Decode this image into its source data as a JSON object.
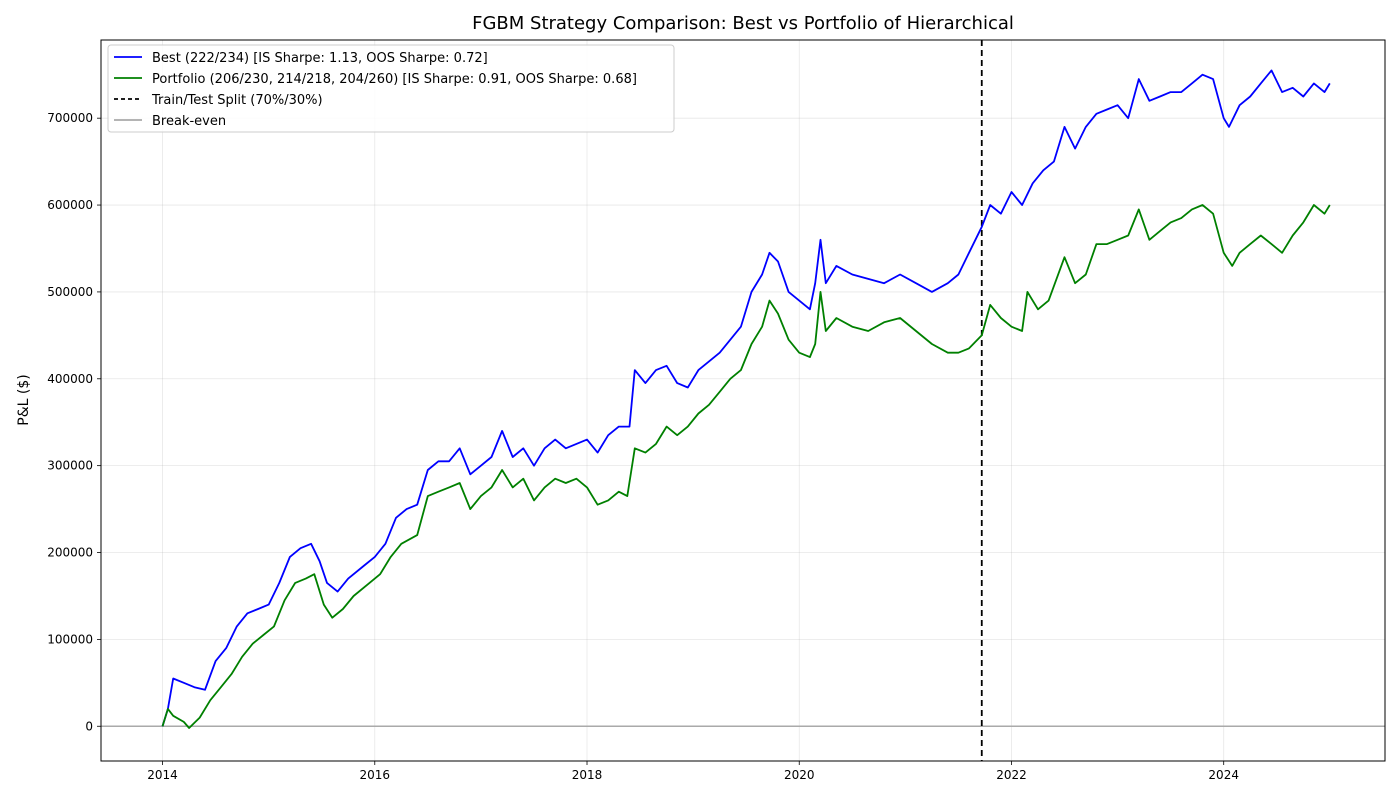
{
  "chart_data": {
    "type": "line",
    "title": "FGBM Strategy Comparison: Best vs Portfolio of Hierarchical",
    "xlabel": "",
    "ylabel": "P&L ($)",
    "x_ticks": [
      "2014",
      "2016",
      "2018",
      "2020",
      "2022",
      "2024"
    ],
    "y_ticks": [
      "0",
      "100000",
      "200000",
      "300000",
      "400000",
      "500000",
      "600000",
      "700000"
    ],
    "xlim": [
      2013.42,
      2025.52
    ],
    "ylim": [
      -40000,
      790000
    ],
    "grid": true,
    "legend_position": "upper-left",
    "series": [
      {
        "name": "Best (222/234) [IS Sharpe: 1.13, OOS Sharpe: 0.72]",
        "color": "#0000ff",
        "style": "solid",
        "points": [
          [
            2014.0,
            0
          ],
          [
            2014.05,
            20000
          ],
          [
            2014.1,
            55000
          ],
          [
            2014.2,
            50000
          ],
          [
            2014.3,
            45000
          ],
          [
            2014.4,
            42000
          ],
          [
            2014.5,
            75000
          ],
          [
            2014.6,
            90000
          ],
          [
            2014.7,
            115000
          ],
          [
            2014.8,
            130000
          ],
          [
            2014.9,
            135000
          ],
          [
            2015.0,
            140000
          ],
          [
            2015.1,
            165000
          ],
          [
            2015.2,
            195000
          ],
          [
            2015.3,
            205000
          ],
          [
            2015.4,
            210000
          ],
          [
            2015.48,
            190000
          ],
          [
            2015.55,
            165000
          ],
          [
            2015.65,
            155000
          ],
          [
            2015.75,
            170000
          ],
          [
            2015.9,
            185000
          ],
          [
            2016.0,
            195000
          ],
          [
            2016.1,
            210000
          ],
          [
            2016.2,
            240000
          ],
          [
            2016.3,
            250000
          ],
          [
            2016.4,
            255000
          ],
          [
            2016.5,
            295000
          ],
          [
            2016.6,
            305000
          ],
          [
            2016.7,
            305000
          ],
          [
            2016.8,
            320000
          ],
          [
            2016.9,
            290000
          ],
          [
            2017.0,
            300000
          ],
          [
            2017.1,
            310000
          ],
          [
            2017.2,
            340000
          ],
          [
            2017.3,
            310000
          ],
          [
            2017.4,
            320000
          ],
          [
            2017.5,
            300000
          ],
          [
            2017.6,
            320000
          ],
          [
            2017.7,
            330000
          ],
          [
            2017.8,
            320000
          ],
          [
            2017.9,
            325000
          ],
          [
            2018.0,
            330000
          ],
          [
            2018.1,
            315000
          ],
          [
            2018.2,
            335000
          ],
          [
            2018.3,
            345000
          ],
          [
            2018.4,
            345000
          ],
          [
            2018.45,
            410000
          ],
          [
            2018.55,
            395000
          ],
          [
            2018.65,
            410000
          ],
          [
            2018.75,
            415000
          ],
          [
            2018.85,
            395000
          ],
          [
            2018.95,
            390000
          ],
          [
            2019.05,
            410000
          ],
          [
            2019.15,
            420000
          ],
          [
            2019.25,
            430000
          ],
          [
            2019.35,
            445000
          ],
          [
            2019.45,
            460000
          ],
          [
            2019.55,
            500000
          ],
          [
            2019.65,
            520000
          ],
          [
            2019.72,
            545000
          ],
          [
            2019.8,
            535000
          ],
          [
            2019.9,
            500000
          ],
          [
            2020.0,
            490000
          ],
          [
            2020.1,
            480000
          ],
          [
            2020.15,
            510000
          ],
          [
            2020.2,
            560000
          ],
          [
            2020.25,
            510000
          ],
          [
            2020.35,
            530000
          ],
          [
            2020.5,
            520000
          ],
          [
            2020.65,
            515000
          ],
          [
            2020.8,
            510000
          ],
          [
            2020.95,
            520000
          ],
          [
            2021.1,
            510000
          ],
          [
            2021.25,
            500000
          ],
          [
            2021.4,
            510000
          ],
          [
            2021.5,
            520000
          ],
          [
            2021.6,
            545000
          ],
          [
            2021.72,
            575000
          ],
          [
            2021.8,
            600000
          ],
          [
            2021.9,
            590000
          ],
          [
            2022.0,
            615000
          ],
          [
            2022.1,
            600000
          ],
          [
            2022.2,
            625000
          ],
          [
            2022.3,
            640000
          ],
          [
            2022.4,
            650000
          ],
          [
            2022.5,
            690000
          ],
          [
            2022.6,
            665000
          ],
          [
            2022.7,
            690000
          ],
          [
            2022.8,
            705000
          ],
          [
            2022.9,
            710000
          ],
          [
            2023.0,
            715000
          ],
          [
            2023.1,
            700000
          ],
          [
            2023.2,
            745000
          ],
          [
            2023.3,
            720000
          ],
          [
            2023.4,
            725000
          ],
          [
            2023.5,
            730000
          ],
          [
            2023.6,
            730000
          ],
          [
            2023.7,
            740000
          ],
          [
            2023.8,
            750000
          ],
          [
            2023.9,
            745000
          ],
          [
            2024.0,
            700000
          ],
          [
            2024.05,
            690000
          ],
          [
            2024.15,
            715000
          ],
          [
            2024.25,
            725000
          ],
          [
            2024.35,
            740000
          ],
          [
            2024.45,
            755000
          ],
          [
            2024.55,
            730000
          ],
          [
            2024.65,
            735000
          ],
          [
            2024.75,
            725000
          ],
          [
            2024.85,
            740000
          ],
          [
            2024.95,
            730000
          ],
          [
            2025.0,
            740000
          ]
        ]
      },
      {
        "name": "Portfolio (206/230, 214/218, 204/260) [IS Sharpe: 0.91, OOS Sharpe: 0.68]",
        "color": "#008000",
        "style": "solid",
        "points": [
          [
            2014.0,
            0
          ],
          [
            2014.05,
            20000
          ],
          [
            2014.1,
            12000
          ],
          [
            2014.2,
            5000
          ],
          [
            2014.25,
            -2000
          ],
          [
            2014.35,
            10000
          ],
          [
            2014.45,
            30000
          ],
          [
            2014.55,
            45000
          ],
          [
            2014.65,
            60000
          ],
          [
            2014.75,
            80000
          ],
          [
            2014.85,
            95000
          ],
          [
            2014.95,
            105000
          ],
          [
            2015.05,
            115000
          ],
          [
            2015.15,
            145000
          ],
          [
            2015.25,
            165000
          ],
          [
            2015.35,
            170000
          ],
          [
            2015.43,
            175000
          ],
          [
            2015.52,
            140000
          ],
          [
            2015.6,
            125000
          ],
          [
            2015.7,
            135000
          ],
          [
            2015.8,
            150000
          ],
          [
            2015.95,
            165000
          ],
          [
            2016.05,
            175000
          ],
          [
            2016.15,
            195000
          ],
          [
            2016.25,
            210000
          ],
          [
            2016.4,
            220000
          ],
          [
            2016.5,
            265000
          ],
          [
            2016.6,
            270000
          ],
          [
            2016.7,
            275000
          ],
          [
            2016.8,
            280000
          ],
          [
            2016.9,
            250000
          ],
          [
            2017.0,
            265000
          ],
          [
            2017.1,
            275000
          ],
          [
            2017.2,
            295000
          ],
          [
            2017.3,
            275000
          ],
          [
            2017.4,
            285000
          ],
          [
            2017.5,
            260000
          ],
          [
            2017.6,
            275000
          ],
          [
            2017.7,
            285000
          ],
          [
            2017.8,
            280000
          ],
          [
            2017.9,
            285000
          ],
          [
            2018.0,
            275000
          ],
          [
            2018.1,
            255000
          ],
          [
            2018.2,
            260000
          ],
          [
            2018.3,
            270000
          ],
          [
            2018.38,
            265000
          ],
          [
            2018.45,
            320000
          ],
          [
            2018.55,
            315000
          ],
          [
            2018.65,
            325000
          ],
          [
            2018.75,
            345000
          ],
          [
            2018.85,
            335000
          ],
          [
            2018.95,
            345000
          ],
          [
            2019.05,
            360000
          ],
          [
            2019.15,
            370000
          ],
          [
            2019.25,
            385000
          ],
          [
            2019.35,
            400000
          ],
          [
            2019.45,
            410000
          ],
          [
            2019.55,
            440000
          ],
          [
            2019.65,
            460000
          ],
          [
            2019.72,
            490000
          ],
          [
            2019.8,
            475000
          ],
          [
            2019.9,
            445000
          ],
          [
            2020.0,
            430000
          ],
          [
            2020.1,
            425000
          ],
          [
            2020.15,
            440000
          ],
          [
            2020.2,
            500000
          ],
          [
            2020.25,
            455000
          ],
          [
            2020.35,
            470000
          ],
          [
            2020.5,
            460000
          ],
          [
            2020.65,
            455000
          ],
          [
            2020.8,
            465000
          ],
          [
            2020.95,
            470000
          ],
          [
            2021.1,
            455000
          ],
          [
            2021.25,
            440000
          ],
          [
            2021.4,
            430000
          ],
          [
            2021.5,
            430000
          ],
          [
            2021.6,
            435000
          ],
          [
            2021.72,
            450000
          ],
          [
            2021.8,
            485000
          ],
          [
            2021.9,
            470000
          ],
          [
            2022.0,
            460000
          ],
          [
            2022.1,
            455000
          ],
          [
            2022.15,
            500000
          ],
          [
            2022.25,
            480000
          ],
          [
            2022.35,
            490000
          ],
          [
            2022.5,
            540000
          ],
          [
            2022.6,
            510000
          ],
          [
            2022.7,
            520000
          ],
          [
            2022.8,
            555000
          ],
          [
            2022.9,
            555000
          ],
          [
            2023.0,
            560000
          ],
          [
            2023.1,
            565000
          ],
          [
            2023.2,
            595000
          ],
          [
            2023.3,
            560000
          ],
          [
            2023.4,
            570000
          ],
          [
            2023.5,
            580000
          ],
          [
            2023.6,
            585000
          ],
          [
            2023.7,
            595000
          ],
          [
            2023.8,
            600000
          ],
          [
            2023.9,
            590000
          ],
          [
            2024.0,
            545000
          ],
          [
            2024.08,
            530000
          ],
          [
            2024.15,
            545000
          ],
          [
            2024.25,
            555000
          ],
          [
            2024.35,
            565000
          ],
          [
            2024.45,
            555000
          ],
          [
            2024.55,
            545000
          ],
          [
            2024.65,
            565000
          ],
          [
            2024.75,
            580000
          ],
          [
            2024.85,
            600000
          ],
          [
            2024.95,
            590000
          ],
          [
            2025.0,
            600000
          ]
        ]
      }
    ],
    "train_test_split": {
      "name": "Train/Test Split (70%/30%)",
      "x": 2021.72,
      "color": "#000000",
      "style": "dashed"
    },
    "break_even": {
      "name": "Break-even",
      "y": 0,
      "color": "#aaaaaa",
      "style": "solid"
    }
  }
}
